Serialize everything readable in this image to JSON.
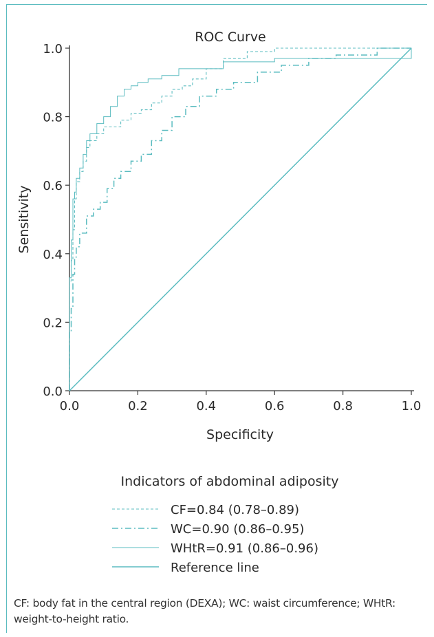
{
  "caption": "CF: body fat in the central region (DEXA); WC: waist circumference; WHtR: weight-to-height ratio.",
  "colors": {
    "curve": "#5bbcc0",
    "frame": "#5bbcc0",
    "axis": "#333333"
  },
  "chart_data": {
    "type": "line",
    "title": "ROC Curve",
    "xlabel": "Specificity",
    "ylabel": "Sensitivity",
    "xlim": [
      0,
      1
    ],
    "ylim": [
      0,
      1
    ],
    "xticks": [
      "0.0",
      "0.2",
      "0.4",
      "0.6",
      "0.8",
      "1.0"
    ],
    "yticks": [
      "0.0",
      "0.2",
      "0.4",
      "0.6",
      "0.8",
      "1.0"
    ],
    "grid": false,
    "legend_title": "Indicators of abdominal adiposity",
    "legend_position": "bottom",
    "series": [
      {
        "name": "CF=0.84 (0.78–0.89)",
        "style": "dashed",
        "x": [
          0,
          0,
          0.005,
          0.005,
          0.01,
          0.01,
          0.015,
          0.015,
          0.02,
          0.02,
          0.03,
          0.03,
          0.04,
          0.04,
          0.05,
          0.05,
          0.06,
          0.06,
          0.08,
          0.08,
          0.1,
          0.1,
          0.12,
          0.12,
          0.15,
          0.15,
          0.18,
          0.18,
          0.21,
          0.21,
          0.24,
          0.24,
          0.27,
          0.27,
          0.3,
          0.3,
          0.33,
          0.33,
          0.36,
          0.36,
          0.4,
          0.4,
          0.45,
          0.45,
          0.52,
          0.52,
          0.6,
          0.6,
          0.75,
          0.75,
          0.9,
          1.0
        ],
        "y": [
          0,
          0.32,
          0.32,
          0.38,
          0.38,
          0.47,
          0.47,
          0.56,
          0.56,
          0.61,
          0.61,
          0.64,
          0.64,
          0.67,
          0.67,
          0.71,
          0.71,
          0.73,
          0.73,
          0.75,
          0.75,
          0.77,
          0.77,
          0.77,
          0.77,
          0.79,
          0.79,
          0.81,
          0.81,
          0.82,
          0.82,
          0.84,
          0.84,
          0.86,
          0.86,
          0.88,
          0.88,
          0.89,
          0.89,
          0.91,
          0.91,
          0.94,
          0.94,
          0.97,
          0.97,
          0.99,
          0.99,
          1.0,
          1.0,
          1.0,
          1.0,
          1.0
        ]
      },
      {
        "name": "WC=0.90 (0.86–0.95)",
        "style": "dashdot",
        "x": [
          0,
          0,
          0.005,
          0.005,
          0.01,
          0.01,
          0.015,
          0.015,
          0.02,
          0.02,
          0.03,
          0.03,
          0.05,
          0.05,
          0.07,
          0.07,
          0.09,
          0.09,
          0.11,
          0.11,
          0.13,
          0.13,
          0.15,
          0.15,
          0.18,
          0.18,
          0.21,
          0.21,
          0.24,
          0.24,
          0.27,
          0.27,
          0.3,
          0.3,
          0.34,
          0.34,
          0.38,
          0.38,
          0.43,
          0.43,
          0.48,
          0.48,
          0.55,
          0.55,
          0.62,
          0.62,
          0.7,
          0.7,
          0.78,
          0.78,
          0.9,
          0.9,
          1.0
        ],
        "y": [
          0,
          0.17,
          0.17,
          0.24,
          0.24,
          0.34,
          0.34,
          0.39,
          0.39,
          0.42,
          0.42,
          0.46,
          0.46,
          0.51,
          0.51,
          0.53,
          0.53,
          0.55,
          0.55,
          0.59,
          0.59,
          0.62,
          0.62,
          0.64,
          0.64,
          0.67,
          0.67,
          0.69,
          0.69,
          0.73,
          0.73,
          0.76,
          0.76,
          0.8,
          0.8,
          0.83,
          0.83,
          0.86,
          0.86,
          0.88,
          0.88,
          0.9,
          0.9,
          0.93,
          0.93,
          0.95,
          0.95,
          0.97,
          0.97,
          0.98,
          0.98,
          1.0,
          1.0
        ]
      },
      {
        "name": "WHtR=0.91 (0.86–0.96)",
        "style": "solid-thin",
        "x": [
          0,
          0,
          0.005,
          0.005,
          0.01,
          0.01,
          0.015,
          0.015,
          0.02,
          0.02,
          0.03,
          0.03,
          0.04,
          0.04,
          0.05,
          0.05,
          0.06,
          0.06,
          0.08,
          0.08,
          0.1,
          0.1,
          0.12,
          0.12,
          0.14,
          0.14,
          0.16,
          0.16,
          0.18,
          0.18,
          0.2,
          0.2,
          0.23,
          0.23,
          0.27,
          0.27,
          0.32,
          0.32,
          0.45,
          0.45,
          0.6,
          0.6,
          1.0,
          1.0,
          0.97
        ],
        "y": [
          0,
          0.33,
          0.33,
          0.44,
          0.44,
          0.56,
          0.56,
          0.58,
          0.58,
          0.62,
          0.62,
          0.65,
          0.65,
          0.69,
          0.69,
          0.73,
          0.73,
          0.75,
          0.75,
          0.78,
          0.78,
          0.8,
          0.8,
          0.83,
          0.83,
          0.86,
          0.86,
          0.88,
          0.88,
          0.89,
          0.89,
          0.9,
          0.9,
          0.91,
          0.91,
          0.92,
          0.92,
          0.94,
          0.94,
          0.96,
          0.96,
          0.97,
          0.97,
          1.0,
          1.0
        ]
      },
      {
        "name": "Reference line",
        "style": "solid",
        "x": [
          0,
          1
        ],
        "y": [
          0,
          1
        ]
      }
    ]
  }
}
